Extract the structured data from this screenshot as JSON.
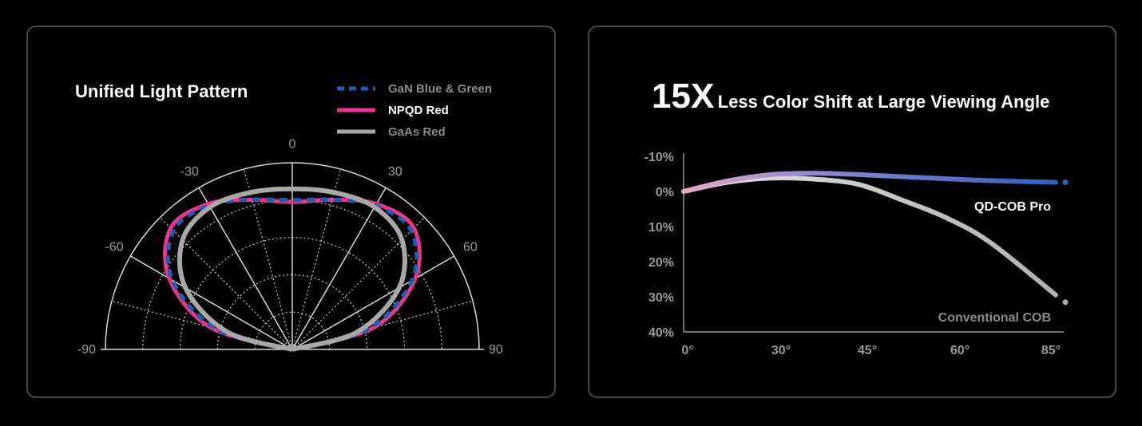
{
  "polar_panel": {
    "title": "Unified Light Pattern",
    "legend": [
      {
        "label": "GaN Blue & Green",
        "style": "dashed",
        "color": "#1e5fb0"
      },
      {
        "label": "NPQD Red",
        "style": "solid",
        "color": "#f0338c"
      },
      {
        "label": "GaAs Red",
        "style": "solid",
        "color": "#a8a8a8"
      }
    ],
    "angle_labels": [
      "-90",
      "-60",
      "-30",
      "0",
      "30",
      "60",
      "90"
    ]
  },
  "shift_panel": {
    "title_big": "15X",
    "title_rest": "Less Color Shift at Large Viewing Angle",
    "series_labels": {
      "pro": "QD-COB Pro",
      "conventional": "Conventional COB"
    }
  },
  "chart_data": [
    {
      "type": "polar",
      "title": "Unified Light Pattern",
      "theta_ticks": [
        -90,
        -60,
        -30,
        0,
        30,
        60,
        90
      ],
      "r_range": [
        0,
        1
      ],
      "series": [
        {
          "name": "GaN Blue & Green",
          "color": "#1e5fb0",
          "style": "dashed",
          "theta": [
            -90,
            -75,
            -60,
            -45,
            -30,
            -15,
            0,
            15,
            30,
            45,
            60,
            75,
            90
          ],
          "r": [
            0,
            0.42,
            0.74,
            0.9,
            0.89,
            0.83,
            0.8,
            0.83,
            0.89,
            0.9,
            0.74,
            0.42,
            0
          ]
        },
        {
          "name": "NPQD Red",
          "color": "#f0338c",
          "style": "solid",
          "theta": [
            -90,
            -75,
            -60,
            -45,
            -30,
            -15,
            0,
            15,
            30,
            45,
            60,
            75,
            90
          ],
          "r": [
            0,
            0.45,
            0.76,
            0.92,
            0.9,
            0.83,
            0.79,
            0.83,
            0.9,
            0.92,
            0.76,
            0.45,
            0
          ]
        },
        {
          "name": "GaAs Red",
          "color": "#a8a8a8",
          "style": "solid",
          "theta": [
            -90,
            -75,
            -60,
            -45,
            -30,
            -15,
            0,
            15,
            30,
            45,
            60,
            75,
            90
          ],
          "r": [
            0,
            0.36,
            0.66,
            0.83,
            0.88,
            0.87,
            0.86,
            0.87,
            0.88,
            0.83,
            0.66,
            0.36,
            0
          ]
        }
      ]
    },
    {
      "type": "line",
      "title": "15X Less Color Shift at Large Viewing Angle",
      "x_ticks": [
        "0°",
        "30°",
        "45°",
        "60°",
        "85°"
      ],
      "y_ticks": [
        "-10%",
        "0%",
        "10%",
        "20%",
        "30%",
        "40%"
      ],
      "ylim": [
        -10,
        40
      ],
      "series": [
        {
          "name": "QD-COB Pro",
          "color": "#3d6fd0",
          "x": [
            0,
            10,
            20,
            30,
            40,
            50,
            60,
            70,
            85
          ],
          "y": [
            0,
            -3.0,
            -4.8,
            -5.2,
            -4.8,
            -4.2,
            -3.6,
            -3.1,
            -2.6
          ]
        },
        {
          "name": "Conventional COB",
          "color": "#b8b8b8",
          "x": [
            0,
            10,
            20,
            30,
            40,
            50,
            60,
            70,
            85
          ],
          "y": [
            0,
            -2.6,
            -3.8,
            -3.5,
            -2.0,
            2.5,
            7.5,
            14.5,
            29.5
          ]
        }
      ]
    }
  ]
}
